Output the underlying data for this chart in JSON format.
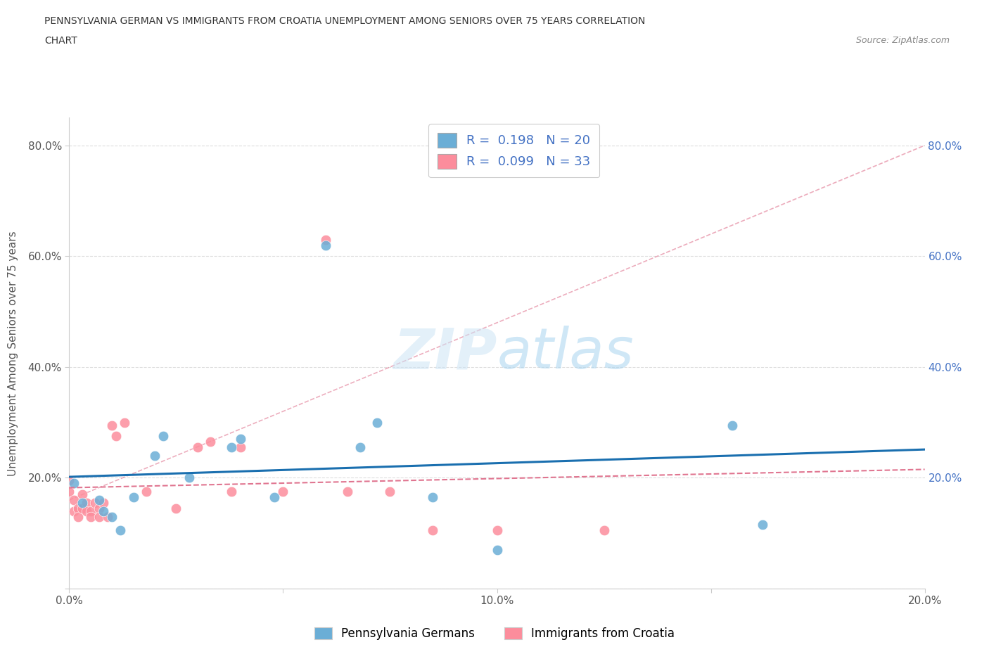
{
  "title_line1": "PENNSYLVANIA GERMAN VS IMMIGRANTS FROM CROATIA UNEMPLOYMENT AMONG SENIORS OVER 75 YEARS CORRELATION",
  "title_line2": "CHART",
  "source_text": "Source: ZipAtlas.com",
  "ylabel": "Unemployment Among Seniors over 75 years",
  "legend_label1": "Pennsylvania Germans",
  "legend_label2": "Immigrants from Croatia",
  "R1": 0.198,
  "N1": 20,
  "R2": 0.099,
  "N2": 33,
  "color1": "#6baed6",
  "color2": "#fc8d9c",
  "trendline1_color": "#1a6faf",
  "trendline2_color": "#e07590",
  "watermark_color": "#cce5f5",
  "xmin": 0.0,
  "xmax": 0.2,
  "ymin": 0.0,
  "ymax": 0.85,
  "xticks": [
    0.0,
    0.05,
    0.1,
    0.15,
    0.2
  ],
  "xtick_labels": [
    "0.0%",
    "",
    "10.0%",
    "",
    "20.0%"
  ],
  "yticks": [
    0.0,
    0.2,
    0.4,
    0.6,
    0.8
  ],
  "ytick_labels": [
    "",
    "20.0%",
    "40.0%",
    "60.0%",
    "80.0%"
  ],
  "blue_points_x": [
    0.001,
    0.003,
    0.007,
    0.008,
    0.01,
    0.012,
    0.015,
    0.02,
    0.022,
    0.028,
    0.038,
    0.04,
    0.048,
    0.06,
    0.068,
    0.072,
    0.085,
    0.1,
    0.155,
    0.162
  ],
  "blue_points_y": [
    0.19,
    0.155,
    0.16,
    0.14,
    0.13,
    0.105,
    0.165,
    0.24,
    0.275,
    0.2,
    0.255,
    0.27,
    0.165,
    0.62,
    0.255,
    0.3,
    0.165,
    0.07,
    0.295,
    0.115
  ],
  "pink_points_x": [
    0.0,
    0.0,
    0.001,
    0.001,
    0.002,
    0.002,
    0.003,
    0.003,
    0.004,
    0.004,
    0.005,
    0.005,
    0.006,
    0.007,
    0.007,
    0.008,
    0.009,
    0.01,
    0.011,
    0.013,
    0.018,
    0.025,
    0.03,
    0.033,
    0.038,
    0.04,
    0.05,
    0.06,
    0.065,
    0.075,
    0.085,
    0.1,
    0.125
  ],
  "pink_points_y": [
    0.195,
    0.175,
    0.16,
    0.14,
    0.145,
    0.13,
    0.17,
    0.145,
    0.155,
    0.14,
    0.14,
    0.13,
    0.155,
    0.145,
    0.13,
    0.155,
    0.13,
    0.295,
    0.275,
    0.3,
    0.175,
    0.145,
    0.255,
    0.265,
    0.175,
    0.255,
    0.175,
    0.63,
    0.175,
    0.175,
    0.105,
    0.105,
    0.105
  ],
  "dashed_line_color": "#e07590",
  "dashed_line_x": [
    0.0,
    0.2
  ],
  "dashed_line_y": [
    0.16,
    0.8
  ]
}
